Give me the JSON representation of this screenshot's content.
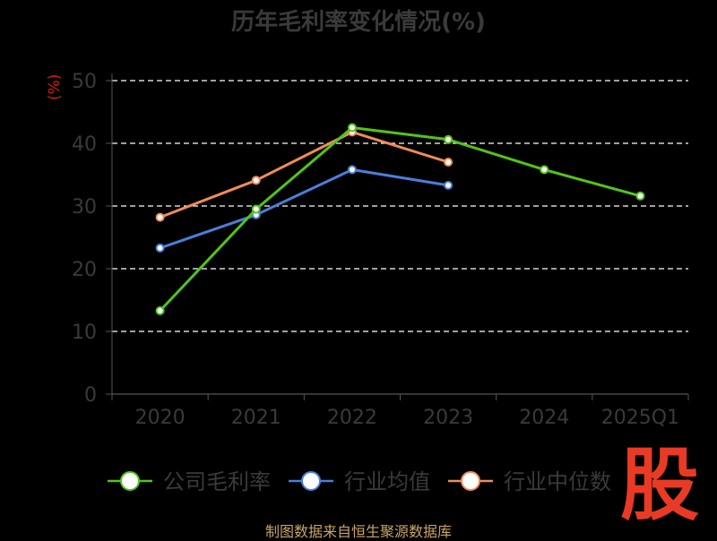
{
  "title": "历年毛利率变化情况(%)",
  "logo_text": "股",
  "source_text": "制图数据来自恒生聚源数据库",
  "chart_data": {
    "type": "line",
    "title": "历年毛利率变化情况(%)",
    "xlabel": "",
    "ylabel": "(%)",
    "categories": [
      "2020",
      "2021",
      "2022",
      "2023",
      "2024",
      "2025Q1"
    ],
    "ylim": [
      0,
      50
    ],
    "yticks": [
      0,
      10,
      20,
      30,
      40,
      50
    ],
    "grid": true,
    "legend_position": "bottom",
    "series": [
      {
        "name": "公司毛利率",
        "color": "#52c41a",
        "values": [
          13.3,
          29.5,
          42.5,
          40.6,
          35.8,
          31.6
        ]
      },
      {
        "name": "行业均值",
        "color": "#4a7fdb",
        "values": [
          23.3,
          28.6,
          35.8,
          33.3,
          null,
          null
        ]
      },
      {
        "name": "行业中位数",
        "color": "#f08c5a",
        "values": [
          28.2,
          34.1,
          41.8,
          37.0,
          null,
          null
        ]
      }
    ]
  }
}
